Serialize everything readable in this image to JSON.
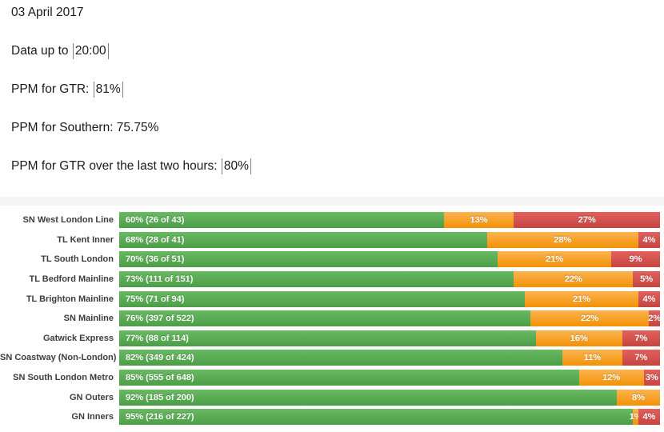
{
  "header": {
    "lines": [
      {
        "prefix": "03 April 2017",
        "value": ""
      },
      {
        "prefix": "Data up to ",
        "value": "20:00"
      },
      {
        "prefix": "PPM for GTR: ",
        "value": "81%"
      },
      {
        "prefix": "PPM for Southern: 75.75%",
        "value": ""
      },
      {
        "prefix": "PPM for GTR over the last two hours: ",
        "value": "80%"
      }
    ]
  },
  "colors": {
    "green": "#57a84f",
    "amber": "#f59b28",
    "red": "#d0504c",
    "label_text": "#3d3d3d",
    "bar_text": "#ffffff"
  },
  "chart_data": {
    "type": "bar",
    "orientation": "horizontal",
    "stacked": true,
    "xlim": [
      0,
      100
    ],
    "grid": false,
    "legend": "none",
    "categories": [
      "SN West London Line",
      "TL Kent Inner",
      "TL South London",
      "TL Bedford Mainline",
      "TL Brighton Mainline",
      "SN Mainline",
      "Gatwick Express",
      "SN Coastway (Non-London)",
      "SN South London Metro",
      "GN Outers",
      "GN Inners"
    ],
    "series": [
      {
        "name": "green",
        "color": "#57a84f",
        "values": [
          60,
          68,
          70,
          73,
          75,
          76,
          77,
          82,
          85,
          92,
          95
        ]
      },
      {
        "name": "amber",
        "color": "#f59b28",
        "values": [
          13,
          28,
          21,
          22,
          21,
          22,
          16,
          11,
          12,
          8,
          1
        ]
      },
      {
        "name": "red",
        "color": "#d0504c",
        "values": [
          27,
          4,
          9,
          5,
          4,
          2,
          7,
          7,
          3,
          0,
          4
        ]
      }
    ],
    "bar_labels": {
      "green": [
        "60% (26 of 43)",
        "68% (28 of 41)",
        "70% (36 of 51)",
        "73% (111 of 151)",
        "75% (71 of 94)",
        "76% (397 of 522)",
        "77% (88 of 114)",
        "82% (349 of 424)",
        "85% (555 of 648)",
        "92% (185 of 200)",
        "95% (216 of 227)"
      ],
      "amber": [
        "13%",
        "28%",
        "21%",
        "22%",
        "21%",
        "22%",
        "16%",
        "11%",
        "12%",
        "8%",
        "1%"
      ],
      "red": [
        "27%",
        "4%",
        "9%",
        "5%",
        "4%",
        "2%",
        "7%",
        "7%",
        "3%",
        "",
        "4%"
      ]
    }
  }
}
